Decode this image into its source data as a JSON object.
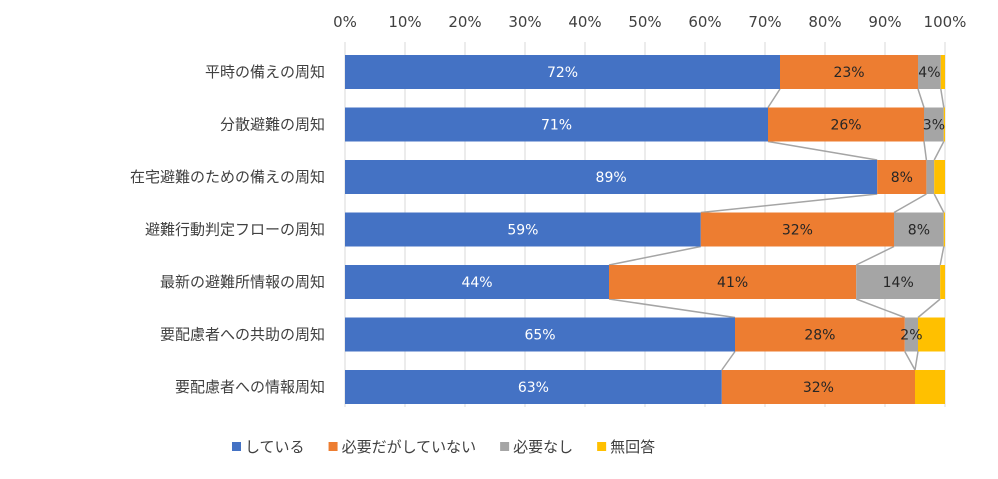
{
  "chart_data": {
    "type": "bar",
    "orientation": "horizontal",
    "stacked": "percent",
    "categories": [
      "平時の備えの周知",
      "分散避難の周知",
      "在宅避難のための備えの周知",
      "避難行動判定フローの周知",
      "最新の避難所情報の周知",
      "要配慮者への共助の周知",
      "要配慮者への情報周知"
    ],
    "series": [
      {
        "name": "している",
        "color": "#4472C4",
        "values": [
          72.5,
          70.5,
          88.7,
          59.3,
          44.0,
          65.0,
          62.8
        ],
        "labels": [
          "72%",
          "71%",
          "89%",
          "59%",
          "44%",
          "65%",
          "63%"
        ],
        "label_color": "#ffffff"
      },
      {
        "name": "必要だがしていない",
        "color": "#ED7D31",
        "values": [
          23.0,
          26.0,
          8.2,
          32.2,
          41.2,
          28.3,
          32.2
        ],
        "labels": [
          "23%",
          "26%",
          "8%",
          "32%",
          "41%",
          "28%",
          "32%"
        ],
        "label_color": "#262626"
      },
      {
        "name": "必要なし",
        "color": "#A5A5A5",
        "values": [
          3.8,
          3.3,
          1.3,
          8.3,
          14.0,
          2.2,
          0
        ],
        "labels": [
          "4%",
          "3%",
          "",
          "8%",
          "14%",
          "2%",
          ""
        ],
        "label_color": "#262626"
      },
      {
        "name": "無回答",
        "color": "#FFC000",
        "values": [
          0.7,
          0.2,
          1.8,
          0.2,
          0.8,
          4.5,
          5.0
        ],
        "labels": [
          "",
          "",
          "",
          "",
          "",
          "",
          ""
        ],
        "label_color": "#262626"
      }
    ],
    "x_ticks": [
      "0%",
      "10%",
      "20%",
      "30%",
      "40%",
      "50%",
      "60%",
      "70%",
      "80%",
      "90%",
      "100%"
    ],
    "xlim": [
      0,
      100
    ],
    "grid": true,
    "series_lines": true,
    "legend_position": "bottom"
  }
}
